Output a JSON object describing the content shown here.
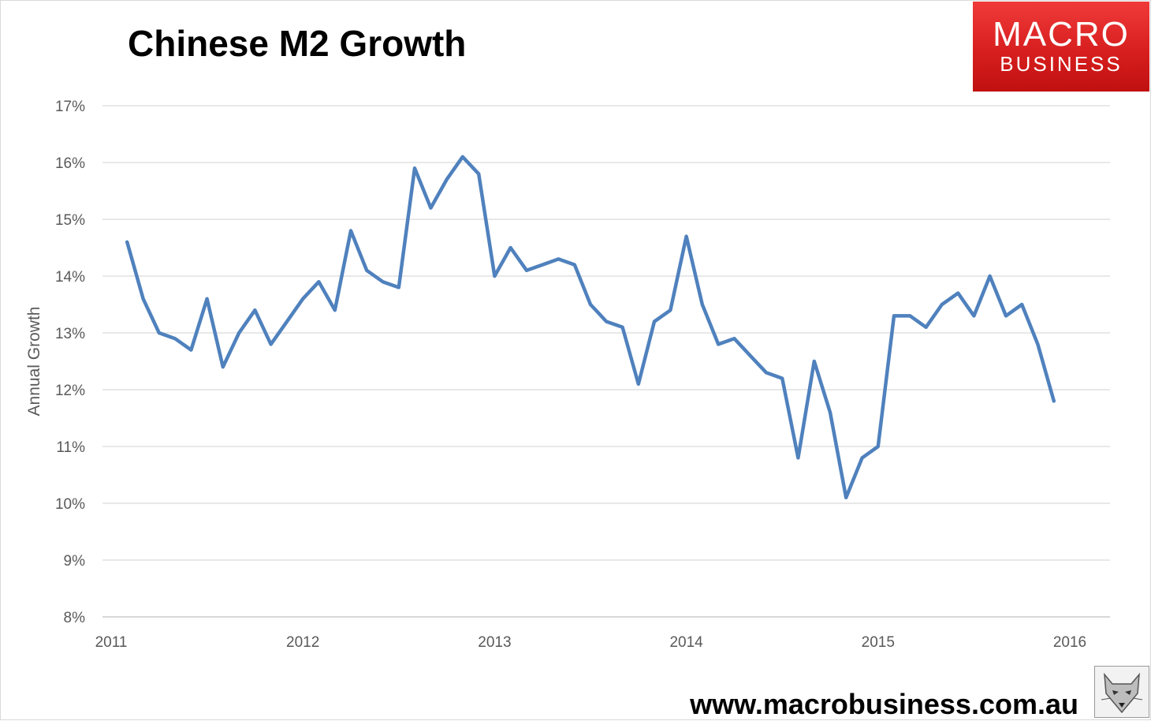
{
  "title": "Chinese M2 Growth",
  "logo": {
    "top": "MACRO",
    "bottom": "BUSINESS"
  },
  "footer": {
    "url": "www.macrobusiness.com.au"
  },
  "chart_data": {
    "type": "line",
    "title": "Chinese M2 Growth",
    "xlabel": "",
    "ylabel": "Annual Growth",
    "ylim": [
      8,
      17
    ],
    "xlim": [
      2011,
      2016
    ],
    "y_ticks": [
      "8%",
      "9%",
      "10%",
      "11%",
      "12%",
      "13%",
      "14%",
      "15%",
      "16%",
      "17%"
    ],
    "x_ticks": [
      "2011",
      "2012",
      "2013",
      "2014",
      "2015",
      "2016"
    ],
    "grid": true,
    "line_color": "#4f81bd",
    "series": [
      {
        "name": "",
        "x": [
          2011.083,
          2011.167,
          2011.25,
          2011.333,
          2011.417,
          2011.5,
          2011.583,
          2011.667,
          2011.75,
          2011.833,
          2011.917,
          2012.0,
          2012.083,
          2012.167,
          2012.25,
          2012.333,
          2012.417,
          2012.5,
          2012.583,
          2012.667,
          2012.75,
          2012.833,
          2012.917,
          2013.0,
          2013.083,
          2013.167,
          2013.25,
          2013.333,
          2013.417,
          2013.5,
          2013.583,
          2013.667,
          2013.75,
          2013.833,
          2013.917,
          2014.0,
          2014.083,
          2014.167,
          2014.25,
          2014.333,
          2014.417,
          2014.5,
          2014.583,
          2014.667,
          2014.75,
          2014.833,
          2014.917,
          2015.0,
          2015.083,
          2015.167,
          2015.25,
          2015.333,
          2015.417,
          2015.5,
          2015.583,
          2015.667,
          2015.75,
          2015.833,
          2015.917
        ],
        "values": [
          14.6,
          13.6,
          13.0,
          12.9,
          12.7,
          13.6,
          12.4,
          13.0,
          13.4,
          12.8,
          13.2,
          13.6,
          13.9,
          13.4,
          14.8,
          14.1,
          13.9,
          13.8,
          15.9,
          15.2,
          15.7,
          16.1,
          15.8,
          14.0,
          14.5,
          14.1,
          14.2,
          14.3,
          14.2,
          13.5,
          13.2,
          13.1,
          12.1,
          13.2,
          13.4,
          14.7,
          13.5,
          12.8,
          12.9,
          12.6,
          12.3,
          12.2,
          10.8,
          12.5,
          11.6,
          10.1,
          10.8,
          11.0,
          13.3,
          13.3,
          13.1,
          13.5,
          13.7,
          13.3,
          14.0,
          13.3,
          13.5,
          12.8,
          11.8
        ]
      }
    ]
  }
}
